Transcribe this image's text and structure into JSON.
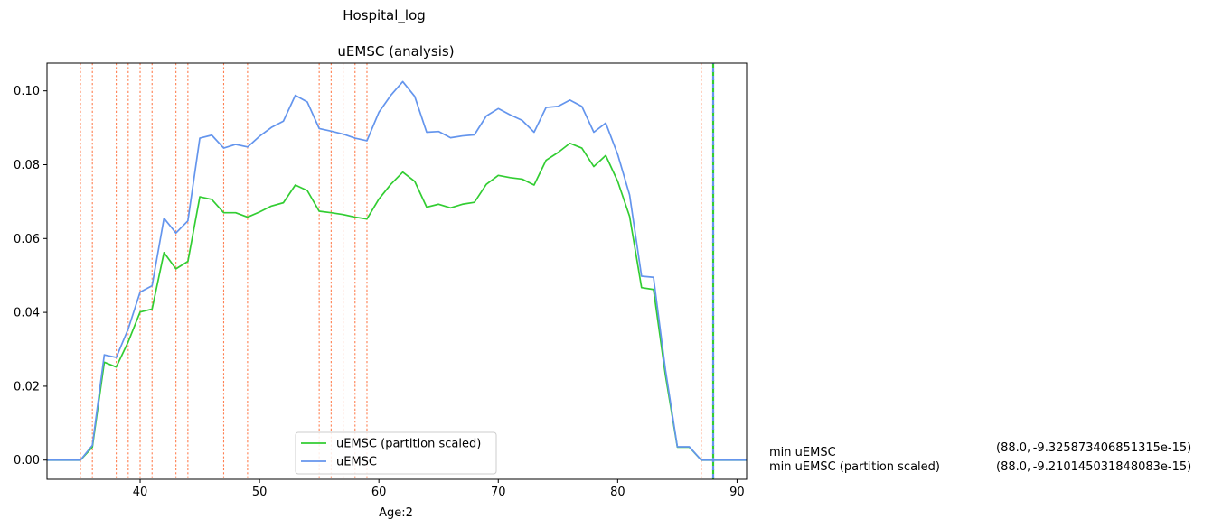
{
  "figure": {
    "suptitle": "Hospital_log",
    "annotations": [
      {
        "label": "min uEMSC",
        "value": "(88.0, -9.325873406851315e-15)"
      },
      {
        "label": "min uEMSC (partition scaled)",
        "value": "(88.0, -9.210145031848083e-15)"
      }
    ]
  },
  "chart_data": {
    "type": "line",
    "title": "uEMSC (analysis)",
    "xlabel": "Age:2",
    "ylabel": "",
    "xlim": [
      32.2,
      90.8
    ],
    "ylim": [
      -0.0052,
      0.1075
    ],
    "xticks": [
      40,
      50,
      60,
      70,
      80,
      90
    ],
    "yticks": [
      0.0,
      0.02,
      0.04,
      0.06,
      0.08,
      0.1
    ],
    "ytick_labels": [
      "0.00",
      "0.02",
      "0.04",
      "0.06",
      "0.08",
      "0.10"
    ],
    "legend_position": "bottom-center",
    "grid": false,
    "x": [
      32,
      33,
      34,
      35,
      36,
      37,
      38,
      39,
      40,
      41,
      42,
      43,
      44,
      45,
      46,
      47,
      48,
      49,
      50,
      51,
      52,
      53,
      54,
      55,
      56,
      57,
      58,
      59,
      60,
      61,
      62,
      63,
      64,
      65,
      66,
      67,
      68,
      69,
      70,
      71,
      72,
      73,
      74,
      75,
      76,
      77,
      78,
      79,
      80,
      81,
      82,
      83,
      84,
      85,
      86,
      87,
      88,
      89,
      90,
      91
    ],
    "series": [
      {
        "name": "uEMSC (partition scaled)",
        "color": "#32cd32",
        "values": [
          0,
          0,
          0,
          0,
          0.0035,
          0.0265,
          0.0252,
          0.032,
          0.0401,
          0.0409,
          0.0562,
          0.0518,
          0.0538,
          0.0713,
          0.0706,
          0.067,
          0.067,
          0.0658,
          0.0672,
          0.0688,
          0.0697,
          0.0745,
          0.073,
          0.0674,
          0.067,
          0.0665,
          0.0658,
          0.0653,
          0.0707,
          0.0747,
          0.078,
          0.0755,
          0.0685,
          0.0693,
          0.0683,
          0.0693,
          0.0698,
          0.0747,
          0.0771,
          0.0765,
          0.0761,
          0.0745,
          0.0812,
          0.0833,
          0.0858,
          0.0845,
          0.0795,
          0.0825,
          0.0755,
          0.066,
          0.0467,
          0.0462,
          0.023,
          0.0035,
          0.0035,
          0,
          0,
          0,
          0,
          0
        ]
      },
      {
        "name": "uEMSC",
        "color": "#6495ed",
        "values": [
          0,
          0,
          0,
          0,
          0.004,
          0.0285,
          0.0278,
          0.0355,
          0.0455,
          0.0472,
          0.0655,
          0.0615,
          0.0648,
          0.0872,
          0.088,
          0.0845,
          0.0855,
          0.0848,
          0.0877,
          0.0901,
          0.0918,
          0.0988,
          0.097,
          0.0898,
          0.0891,
          0.0883,
          0.0872,
          0.0865,
          0.0942,
          0.0988,
          0.1025,
          0.0985,
          0.0888,
          0.089,
          0.0873,
          0.0878,
          0.0881,
          0.0932,
          0.0952,
          0.0935,
          0.092,
          0.0888,
          0.0955,
          0.0958,
          0.0975,
          0.0958,
          0.0888,
          0.0913,
          0.0828,
          0.0718,
          0.0498,
          0.0495,
          0.0245,
          0.0036,
          0.0036,
          0,
          0,
          0,
          0,
          0
        ]
      }
    ],
    "partition_lines": {
      "color": "#ff7f50",
      "x": [
        35,
        36,
        38,
        39,
        40,
        41,
        43,
        44,
        47,
        49,
        55,
        56,
        57,
        58,
        59,
        87
      ]
    },
    "minimum_markers": {
      "x": 88,
      "colors": [
        "#32cd32",
        "#6495ed"
      ]
    }
  }
}
